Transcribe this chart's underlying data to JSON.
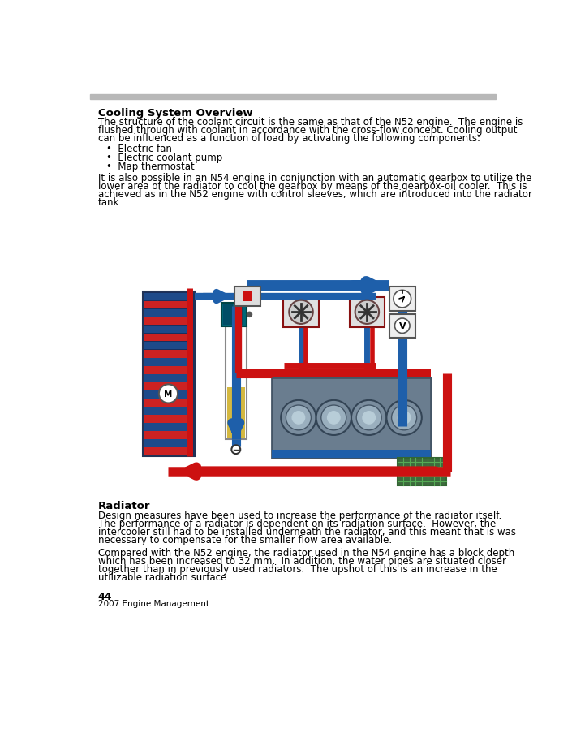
{
  "title": "Cooling System Overview",
  "bg_color": "#ffffff",
  "header_bar_color": "#b8b8b8",
  "body_text_1_lines": [
    "The structure of the coolant circuit is the same as that of the N52 engine.  The engine is",
    "flushed through with coolant in accordance with the cross-flow concept. Cooling output",
    "can be influenced as a function of load by activating the following components:"
  ],
  "bullets": [
    "Electric fan",
    "Electric coolant pump",
    "Map thermostat"
  ],
  "body_text_2_lines": [
    "It is also possible in an N54 engine in conjunction with an automatic gearbox to utilize the",
    "lower area of the radiator to cool the gearbox by means of the gearbox-oil cooler.  This is",
    "achieved as in the N52 engine with control sleeves, which are introduced into the radiator",
    "tank."
  ],
  "section2_title": "Radiator",
  "section2_text_1_lines": [
    "Design measures have been used to increase the performance of the radiator itself.",
    "The performance of a radiator is dependent on its radiation surface.  However, the",
    "intercooler still had to be installed underneath the radiator, and this meant that is was",
    "necessary to compensate for the smaller flow area available."
  ],
  "section2_text_2_lines": [
    "Compared with the N52 engine, the radiator used in the N54 engine has a block depth",
    "which has been increased to 32 mm.  In addition, the water pipes are situated closer",
    "together than in previously used radiators.  The upshot of this is an increase in the",
    "utilizable radiation surface."
  ],
  "page_number": "44",
  "page_subtitle": "2007 Engine Management",
  "blue": "#1e5faa",
  "blue_arrow": "#2266cc",
  "red": "#cc1111",
  "dark_blue_rad": "#1a2f5e",
  "lw_major": 8,
  "lw_minor": 5
}
